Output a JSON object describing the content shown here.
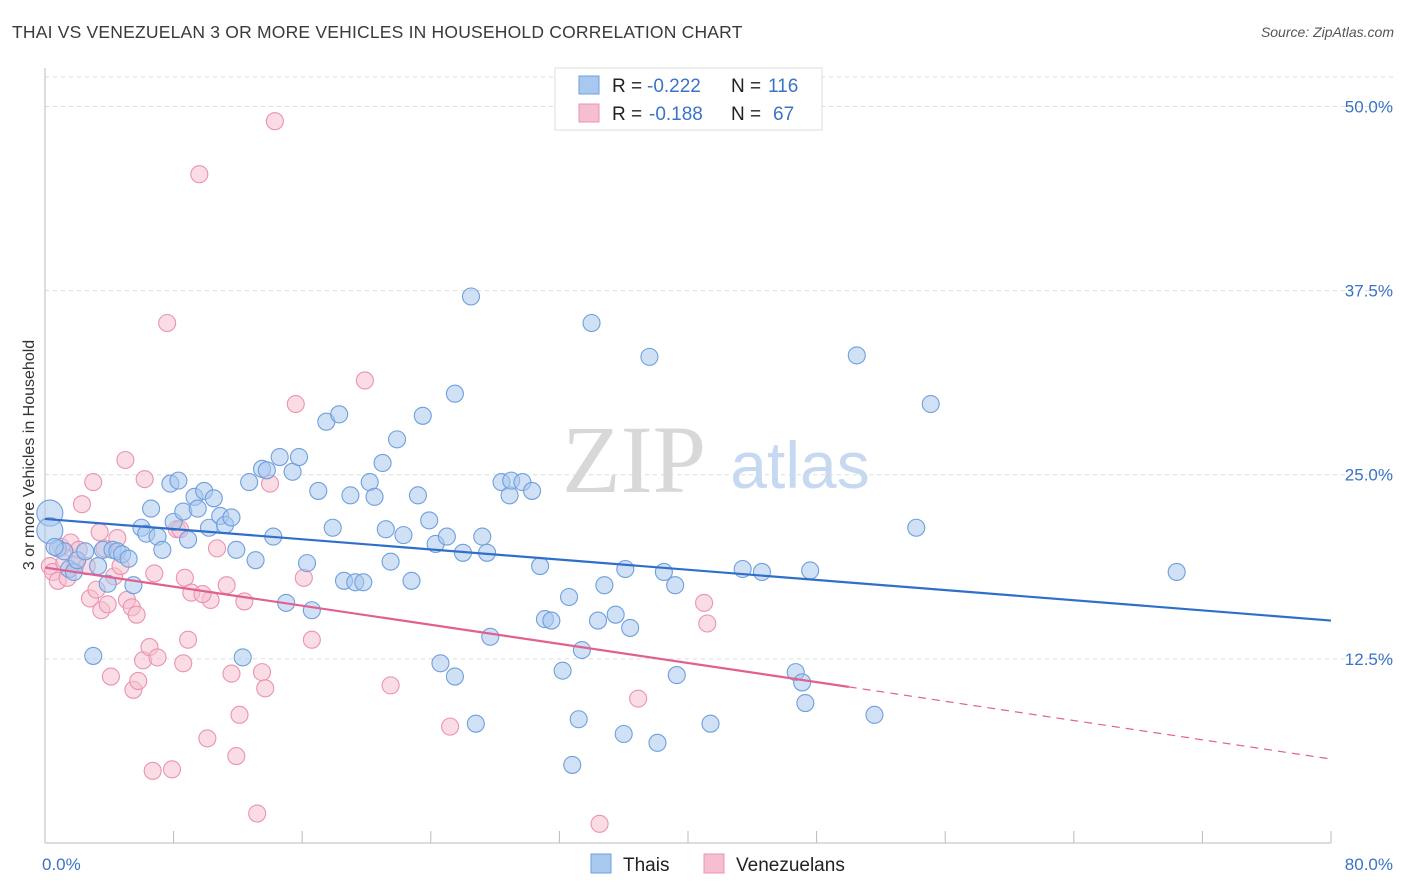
{
  "title": "THAI VS VENEZUELAN 3 OR MORE VEHICLES IN HOUSEHOLD CORRELATION CHART",
  "source": "Source: ZipAtlas.com",
  "watermark": {
    "zip": "ZIP",
    "atlas": "atlas"
  },
  "colors": {
    "blue_fill": "#a9c8ef",
    "blue_stroke": "#6f9fdc",
    "blue_line": "#2f6fcb",
    "pink_fill": "#f6bfd0",
    "pink_stroke": "#ea93b0",
    "pink_line": "#e06090",
    "tick": "#3a73c8",
    "grid": "#dddddd"
  },
  "legend": {
    "r_label": "R =",
    "n_label": "N =",
    "rows": [
      {
        "series": "Thais",
        "r": "-0.222",
        "n": "116"
      },
      {
        "series": "Venezuelans",
        "r": "-0.188",
        "n": "67"
      }
    ]
  },
  "chart_data": {
    "type": "scatter",
    "title": "THAI VS VENEZUELAN 3 OR MORE VEHICLES IN HOUSEHOLD CORRELATION CHART",
    "xlabel": "",
    "ylabel": "3 or more Vehicles in Household",
    "xlim": [
      0,
      80
    ],
    "ylim": [
      0,
      52
    ],
    "x_tick_labels": [
      "0.0%",
      "80.0%"
    ],
    "y_ticks": [
      12.5,
      25.0,
      37.5,
      50.0
    ],
    "y_tick_labels": [
      "12.5%",
      "25.0%",
      "37.5%",
      "50.0%"
    ],
    "grid": true,
    "legend_position": "top-center",
    "series": [
      {
        "name": "Thais",
        "trend": {
          "x": [
            0,
            80
          ],
          "y": [
            22.0,
            15.1
          ]
        },
        "points": [
          [
            0.3,
            22.4
          ],
          [
            0.3,
            21.2
          ],
          [
            0.8,
            20.0
          ],
          [
            1.2,
            19.8
          ],
          [
            1.5,
            18.6
          ],
          [
            1.8,
            18.4
          ],
          [
            2.0,
            19.2
          ],
          [
            2.5,
            19.8
          ],
          [
            3.0,
            12.7
          ],
          [
            3.3,
            18.8
          ],
          [
            3.6,
            19.9
          ],
          [
            3.9,
            17.6
          ],
          [
            4.2,
            19.9
          ],
          [
            4.5,
            19.8
          ],
          [
            4.8,
            19.6
          ],
          [
            5.2,
            19.3
          ],
          [
            5.5,
            17.5
          ],
          [
            6.0,
            21.4
          ],
          [
            6.3,
            21.0
          ],
          [
            6.6,
            22.7
          ],
          [
            7.0,
            20.8
          ],
          [
            7.3,
            19.9
          ],
          [
            7.8,
            24.4
          ],
          [
            8.0,
            21.8
          ],
          [
            8.3,
            24.6
          ],
          [
            8.6,
            22.5
          ],
          [
            8.9,
            20.6
          ],
          [
            9.3,
            23.5
          ],
          [
            9.5,
            22.7
          ],
          [
            9.9,
            23.9
          ],
          [
            10.2,
            21.4
          ],
          [
            10.5,
            23.4
          ],
          [
            10.9,
            22.2
          ],
          [
            11.2,
            21.6
          ],
          [
            11.6,
            22.1
          ],
          [
            11.9,
            19.9
          ],
          [
            12.3,
            12.6
          ],
          [
            12.7,
            24.5
          ],
          [
            13.1,
            19.2
          ],
          [
            13.5,
            25.4
          ],
          [
            13.8,
            25.3
          ],
          [
            14.2,
            20.8
          ],
          [
            14.6,
            26.2
          ],
          [
            15.0,
            16.3
          ],
          [
            15.4,
            25.2
          ],
          [
            15.8,
            26.2
          ],
          [
            16.3,
            19.0
          ],
          [
            16.6,
            15.8
          ],
          [
            17.0,
            23.9
          ],
          [
            17.5,
            28.6
          ],
          [
            17.9,
            21.4
          ],
          [
            18.3,
            29.1
          ],
          [
            18.6,
            17.8
          ],
          [
            19.0,
            23.6
          ],
          [
            19.3,
            17.7
          ],
          [
            19.8,
            17.7
          ],
          [
            20.2,
            24.5
          ],
          [
            20.5,
            23.5
          ],
          [
            21.0,
            25.8
          ],
          [
            21.2,
            21.3
          ],
          [
            21.5,
            19.1
          ],
          [
            21.9,
            27.4
          ],
          [
            22.3,
            20.9
          ],
          [
            22.8,
            17.8
          ],
          [
            23.2,
            23.6
          ],
          [
            23.5,
            29.0
          ],
          [
            23.9,
            21.9
          ],
          [
            24.3,
            20.3
          ],
          [
            24.6,
            12.2
          ],
          [
            25.0,
            20.8
          ],
          [
            25.5,
            30.5
          ],
          [
            25.5,
            11.3
          ],
          [
            26.0,
            19.7
          ],
          [
            26.5,
            37.1
          ],
          [
            26.8,
            8.1
          ],
          [
            27.2,
            20.8
          ],
          [
            27.5,
            19.7
          ],
          [
            27.7,
            14.0
          ],
          [
            28.4,
            24.5
          ],
          [
            28.9,
            23.6
          ],
          [
            29.0,
            24.6
          ],
          [
            29.7,
            24.5
          ],
          [
            30.3,
            23.9
          ],
          [
            30.8,
            18.8
          ],
          [
            31.1,
            15.2
          ],
          [
            31.5,
            15.1
          ],
          [
            32.2,
            11.7
          ],
          [
            32.6,
            16.7
          ],
          [
            32.8,
            5.3
          ],
          [
            33.2,
            8.4
          ],
          [
            33.4,
            13.1
          ],
          [
            34.0,
            35.3
          ],
          [
            34.4,
            15.1
          ],
          [
            34.8,
            17.5
          ],
          [
            35.5,
            15.5
          ],
          [
            36.0,
            7.4
          ],
          [
            36.1,
            18.6
          ],
          [
            36.4,
            14.6
          ],
          [
            37.6,
            33.0
          ],
          [
            38.1,
            6.8
          ],
          [
            38.5,
            18.4
          ],
          [
            39.2,
            17.5
          ],
          [
            39.3,
            11.4
          ],
          [
            41.4,
            8.1
          ],
          [
            43.4,
            18.6
          ],
          [
            44.6,
            18.4
          ],
          [
            46.7,
            11.6
          ],
          [
            47.1,
            10.9
          ],
          [
            47.3,
            9.5
          ],
          [
            47.6,
            18.5
          ],
          [
            50.5,
            33.1
          ],
          [
            51.6,
            8.7
          ],
          [
            54.2,
            21.4
          ],
          [
            55.1,
            29.8
          ],
          [
            70.4,
            18.4
          ],
          [
            0.6,
            20.1
          ]
        ]
      },
      {
        "name": "Venezuelans",
        "trend": {
          "x": [
            0,
            50
          ],
          "y": [
            18.7,
            10.6
          ]
        },
        "trend_dashed": {
          "x": [
            50,
            80
          ],
          "y": [
            10.6,
            5.7
          ]
        },
        "points": [
          [
            0.3,
            18.8
          ],
          [
            0.5,
            18.4
          ],
          [
            0.8,
            17.8
          ],
          [
            1.0,
            20.1
          ],
          [
            1.2,
            19.0
          ],
          [
            1.4,
            18.0
          ],
          [
            1.6,
            20.4
          ],
          [
            1.9,
            18.9
          ],
          [
            2.1,
            19.9
          ],
          [
            2.3,
            23.0
          ],
          [
            2.6,
            18.8
          ],
          [
            2.8,
            16.6
          ],
          [
            3.0,
            24.5
          ],
          [
            3.2,
            17.2
          ],
          [
            3.4,
            21.1
          ],
          [
            3.5,
            15.8
          ],
          [
            3.7,
            20.0
          ],
          [
            3.9,
            16.2
          ],
          [
            4.1,
            11.3
          ],
          [
            4.3,
            18.1
          ],
          [
            4.5,
            20.7
          ],
          [
            4.7,
            18.8
          ],
          [
            5.0,
            26.0
          ],
          [
            5.1,
            16.5
          ],
          [
            5.4,
            16.0
          ],
          [
            5.5,
            10.4
          ],
          [
            5.7,
            15.5
          ],
          [
            5.8,
            11.0
          ],
          [
            6.1,
            12.4
          ],
          [
            6.2,
            24.7
          ],
          [
            6.5,
            13.3
          ],
          [
            6.7,
            4.9
          ],
          [
            6.8,
            18.3
          ],
          [
            7.0,
            12.6
          ],
          [
            7.6,
            35.3
          ],
          [
            7.9,
            5.0
          ],
          [
            8.2,
            21.3
          ],
          [
            8.4,
            21.3
          ],
          [
            8.6,
            12.2
          ],
          [
            8.7,
            18.0
          ],
          [
            8.9,
            13.8
          ],
          [
            9.1,
            17.0
          ],
          [
            9.6,
            45.4
          ],
          [
            10.1,
            7.1
          ],
          [
            10.3,
            16.5
          ],
          [
            10.7,
            20.0
          ],
          [
            11.3,
            17.5
          ],
          [
            11.6,
            11.5
          ],
          [
            11.9,
            5.9
          ],
          [
            12.1,
            8.7
          ],
          [
            12.4,
            16.4
          ],
          [
            13.2,
            2.0
          ],
          [
            13.5,
            11.6
          ],
          [
            13.7,
            10.5
          ],
          [
            14.0,
            24.4
          ],
          [
            14.3,
            49.0
          ],
          [
            15.6,
            29.8
          ],
          [
            16.1,
            18.0
          ],
          [
            16.6,
            13.8
          ],
          [
            19.9,
            31.4
          ],
          [
            21.5,
            10.7
          ],
          [
            25.2,
            7.9
          ],
          [
            34.5,
            1.3
          ],
          [
            36.9,
            9.8
          ],
          [
            41.0,
            16.3
          ],
          [
            41.2,
            14.9
          ],
          [
            9.8,
            16.9
          ]
        ]
      }
    ]
  }
}
